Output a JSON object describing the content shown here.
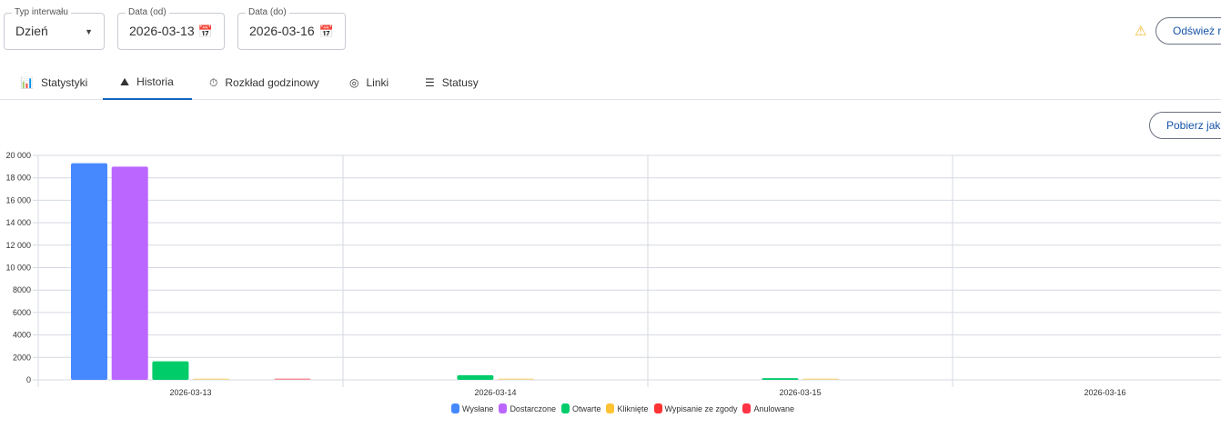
{
  "filters": {
    "interval": {
      "label": "Typ interwału",
      "value": "Dzień"
    },
    "date_from": {
      "label": "Data (od)",
      "value": "2026-03-13"
    },
    "date_to": {
      "label": "Data (do)",
      "value": "2026-03-16"
    }
  },
  "refresh_button": "Odśwież ra",
  "download_button": "Pobierz jako",
  "tabs": [
    {
      "label": "Statystyki",
      "icon": "bar-chart-icon"
    },
    {
      "label": "Historia",
      "icon": "area-chart-icon",
      "active": true
    },
    {
      "label": "Rozkład godzinowy",
      "icon": "timer-icon"
    },
    {
      "label": "Linki",
      "icon": "click-icon"
    },
    {
      "label": "Statusy",
      "icon": "list-icon"
    }
  ],
  "chart_data": {
    "type": "bar",
    "categories": [
      "2026-03-13",
      "2026-03-14",
      "2026-03-15",
      "2026-03-16"
    ],
    "ylim": [
      0,
      20000
    ],
    "yticks": [
      "0",
      "2000",
      "4000",
      "6000",
      "8000",
      "10 000",
      "12 000",
      "14 000",
      "16 000",
      "18 000",
      "20 000"
    ],
    "grid": true,
    "legend": "bottom",
    "series": [
      {
        "name": "Wysłane",
        "color": "#4689ff",
        "values": [
          19300,
          0,
          0,
          0
        ]
      },
      {
        "name": "Dostarczone",
        "color": "#bb66ff",
        "values": [
          19000,
          0,
          0,
          0
        ]
      },
      {
        "name": "Otwarte",
        "color": "#00cc6a",
        "values": [
          1650,
          420,
          150,
          0
        ]
      },
      {
        "name": "Kliknięte",
        "color": "#ffc233",
        "values": [
          30,
          20,
          20,
          0
        ]
      },
      {
        "name": "Wypisanie ze zgody",
        "color": "#ff3333",
        "values": [
          0,
          0,
          0,
          0
        ]
      },
      {
        "name": "Anulowane",
        "color": "#ff3344",
        "values": [
          80,
          0,
          0,
          0
        ]
      }
    ]
  }
}
